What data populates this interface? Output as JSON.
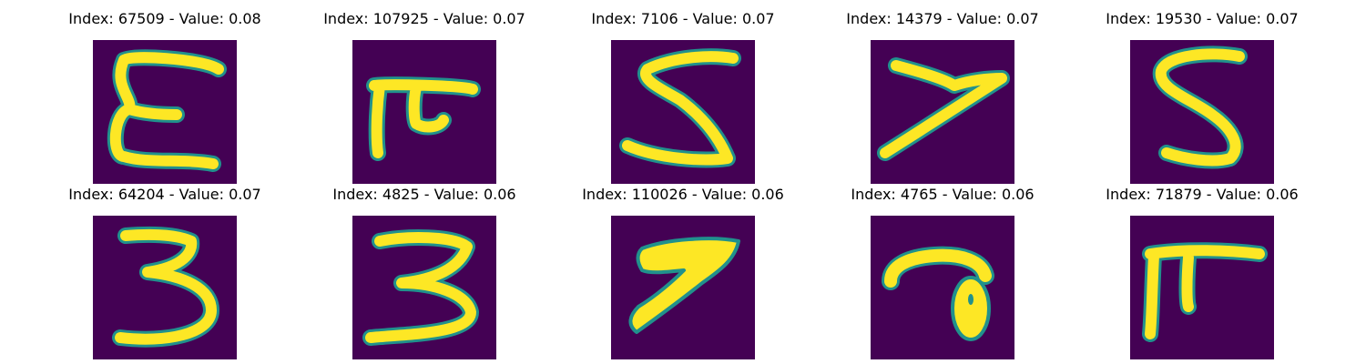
{
  "colors": {
    "background": "#440154",
    "stroke_fill": "#fde725",
    "stroke_edge": "#21918c"
  },
  "cells": [
    {
      "index": "67509",
      "value": "0.08",
      "title": "Index: 67509 - Value: 0.08",
      "glyph": "E-like digit"
    },
    {
      "index": "107925",
      "value": "0.07",
      "title": "Index: 107925 - Value: 0.07",
      "glyph": "pi-like digit"
    },
    {
      "index": "7106",
      "value": "0.07",
      "title": "Index: 7106 - Value: 0.07",
      "glyph": "5"
    },
    {
      "index": "14379",
      "value": "0.07",
      "title": "Index: 14379 - Value: 0.07",
      "glyph": "7"
    },
    {
      "index": "19530",
      "value": "0.07",
      "title": "Index: 19530 - Value: 0.07",
      "glyph": "5"
    },
    {
      "index": "64204",
      "value": "0.07",
      "title": "Index: 64204 - Value: 0.07",
      "glyph": "3"
    },
    {
      "index": "4825",
      "value": "0.06",
      "title": "Index: 4825 - Value: 0.06",
      "glyph": "3"
    },
    {
      "index": "110026",
      "value": "0.06",
      "title": "Index: 110026 - Value: 0.06",
      "glyph": "7"
    },
    {
      "index": "4765",
      "value": "0.06",
      "title": "Index: 4765 - Value: 0.06",
      "glyph": "a-like digit"
    },
    {
      "index": "71879",
      "value": "0.06",
      "title": "Index: 71879 - Value: 0.06",
      "glyph": "pi-like digit"
    }
  ]
}
